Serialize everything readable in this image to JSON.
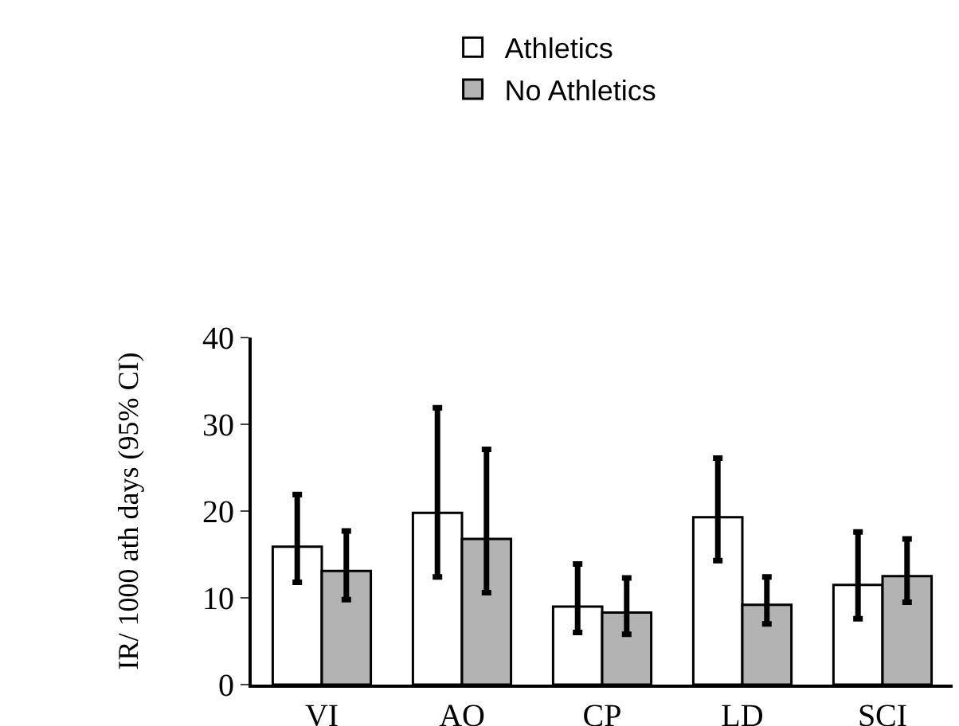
{
  "chart_data": {
    "type": "bar",
    "ylabel": "IR/ 1000 ath days (95% CI)",
    "categories": [
      "VI",
      "AO",
      "CP",
      "LD",
      "SCI"
    ],
    "series": [
      {
        "name": "Athletics",
        "color": "#ffffff",
        "values": [
          15.9,
          19.8,
          9.0,
          19.3,
          11.5
        ],
        "errors": [
          [
            11.8,
            21.9
          ],
          [
            12.4,
            31.9
          ],
          [
            6.0,
            13.9
          ],
          [
            14.3,
            26.1
          ],
          [
            7.6,
            17.6
          ]
        ]
      },
      {
        "name": "No Athletics",
        "color": "#b3b3b3",
        "values": [
          13.1,
          16.8,
          8.3,
          9.2,
          12.5
        ],
        "errors": [
          [
            9.8,
            17.7
          ],
          [
            10.6,
            27.1
          ],
          [
            5.8,
            12.3
          ],
          [
            7.0,
            12.4
          ],
          [
            9.5,
            16.8
          ]
        ]
      }
    ],
    "ylim": [
      0,
      40
    ],
    "yticks": [
      0,
      10,
      20,
      30,
      40
    ],
    "grid": false,
    "legend": "top"
  }
}
